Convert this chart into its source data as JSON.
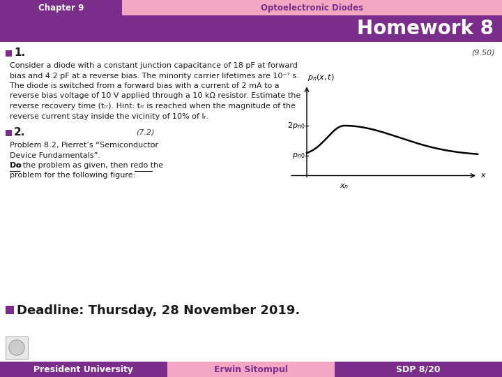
{
  "header_left_text": "Chapter 9",
  "header_left_color": "#7B2D8B",
  "header_right_text": "Optoelectronic Diodes",
  "header_right_color": "#F4A7C3",
  "title_text": "Homework 8",
  "title_bg_color": "#7B2D8B",
  "title_text_color": "#FFFFFF",
  "body_bg_color": "#F0E6F0",
  "item1_number": "(9.50)",
  "item1_lines": [
    "Consider a diode with a constant junction capacitance of 18 pF at forward",
    "bias and 4.2 pF at a reverse bias. The minority carrier lifetimes are 10⁻⁷ s.",
    "The diode is switched from a forward bias with a current of 2 mA to a",
    "reverse bias voltage of 10 V applied through a 10 kΩ resistor. Estimate the",
    "reverse recovery time (tᵣᵣ). Hint: tᵣᵣ is reached when the magnitude of the",
    "reverse current stay inside the vicinity of 10% of Iᵣ."
  ],
  "item2_number": "(7.2)",
  "item2_lines": [
    "Problem 8.2, Pierret’s “Semiconductor",
    "Device Fundamentals”.",
    "Do the problem as given, then redo the",
    "problem for the following figure:"
  ],
  "deadline_text": "Deadline: Thursday, 28 November 2019.",
  "footer_left_text": "President University",
  "footer_left_color": "#7B2D8B",
  "footer_mid_text": "Erwin Sitompul",
  "footer_mid_color": "#F4A7C3",
  "footer_right_text": "SDP 8/20",
  "footer_right_color": "#7B2D8B",
  "footer_text_color": "#FFFFFF",
  "footer_mid_text_color": "#7B2D8B",
  "bullet_color": "#7B2D8B",
  "header_text_color_left": "#FFFFFF",
  "header_text_color_right": "#7B2D8B",
  "text_color": "#1A1A1A"
}
